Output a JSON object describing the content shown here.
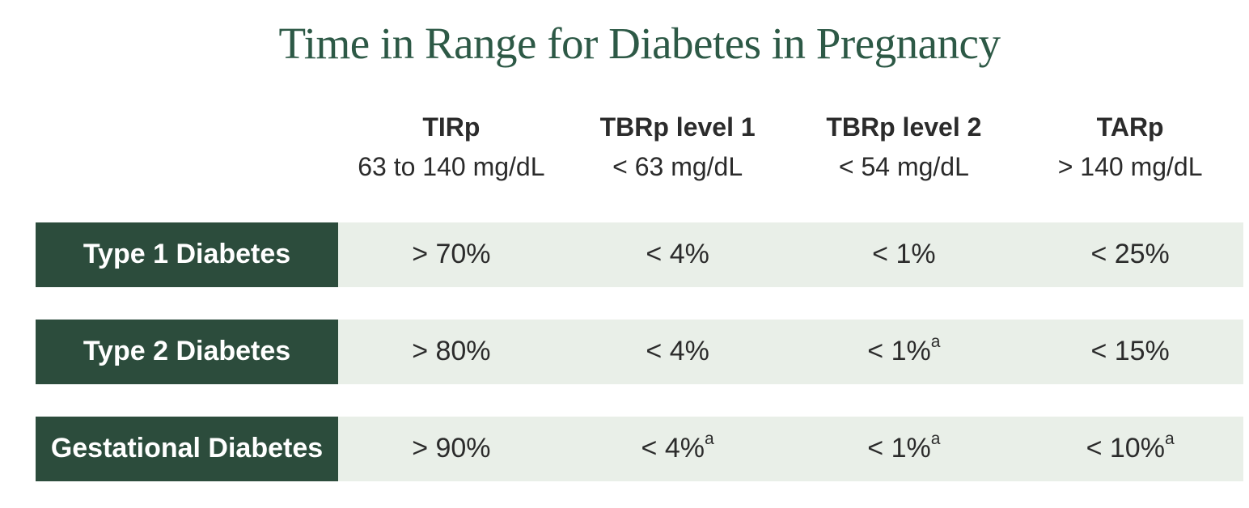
{
  "title": "Time in Range for Diabetes in Pregnancy",
  "colors": {
    "title_green": "#2d5946",
    "row_label_background": "#2c4c3c",
    "cell_background": "#e9efe8",
    "body_text": "#2b2b2b",
    "row_label_text": "#ffffff",
    "page_background": "#ffffff"
  },
  "chart_data": {
    "type": "table",
    "title": "Time in Range for Diabetes in Pregnancy",
    "columns": [
      {
        "label": "TIRp",
        "sublabel": "63 to 140 mg/dL"
      },
      {
        "label": "TBRp level 1",
        "sublabel": "< 63 mg/dL"
      },
      {
        "label": "TBRp level 2",
        "sublabel": "< 54 mg/dL"
      },
      {
        "label": "TARp",
        "sublabel": "> 140 mg/dL"
      }
    ],
    "rows": [
      {
        "label": "Type 1 Diabetes",
        "cells": [
          {
            "text": "> 70%",
            "sup": ""
          },
          {
            "text": "< 4%",
            "sup": ""
          },
          {
            "text": "< 1%",
            "sup": ""
          },
          {
            "text": "< 25%",
            "sup": ""
          }
        ]
      },
      {
        "label": "Type 2 Diabetes",
        "cells": [
          {
            "text": "> 80%",
            "sup": ""
          },
          {
            "text": "< 4%",
            "sup": ""
          },
          {
            "text": "< 1%",
            "sup": "a"
          },
          {
            "text": "< 15%",
            "sup": ""
          }
        ]
      },
      {
        "label": "Gestational Diabetes",
        "cells": [
          {
            "text": "> 90%",
            "sup": ""
          },
          {
            "text": "< 4%",
            "sup": "a"
          },
          {
            "text": "< 1%",
            "sup": "a"
          },
          {
            "text": "< 10%",
            "sup": "a"
          }
        ]
      }
    ],
    "footnote_marker": "a"
  }
}
